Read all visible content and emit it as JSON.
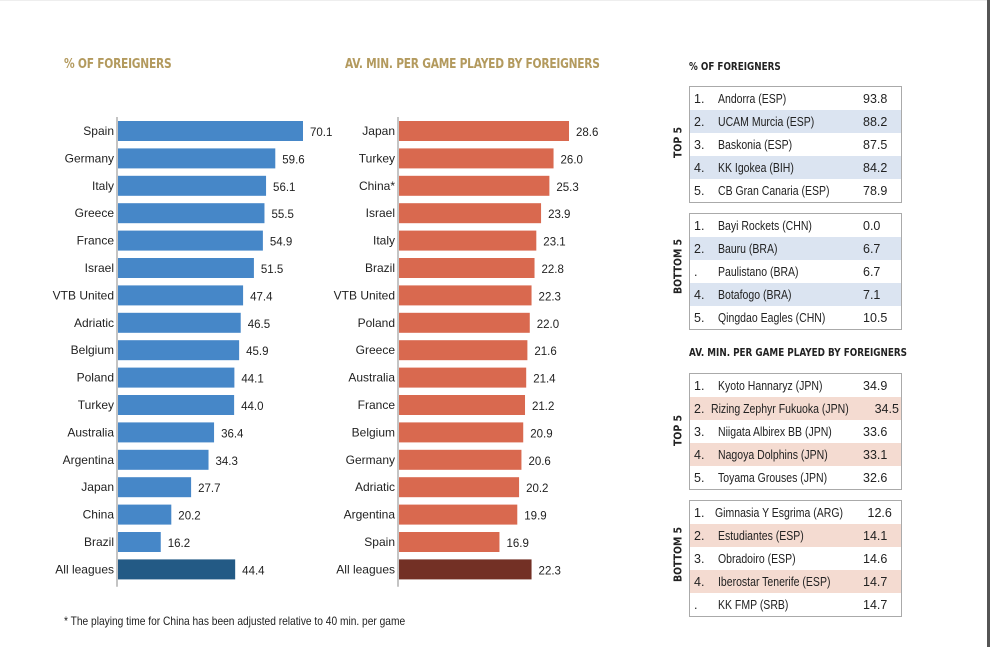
{
  "chart_data": [
    {
      "type": "bar",
      "orientation": "horizontal",
      "title": "% OF FOREIGNERS",
      "xlabel": "",
      "ylabel": "",
      "xlim": [
        0,
        80
      ],
      "grid": false,
      "bar_color": "#4687c8",
      "highlight_color": "#235a85",
      "categories": [
        "Spain",
        "Germany",
        "Italy",
        "Greece",
        "France",
        "Israel",
        "VTB United",
        "Adriatic",
        "Belgium",
        "Poland",
        "Turkey",
        "Australia",
        "Argentina",
        "Japan",
        "China",
        "Brazil",
        "All leagues"
      ],
      "values": [
        70.1,
        59.6,
        56.1,
        55.5,
        54.9,
        51.5,
        47.4,
        46.5,
        45.9,
        44.1,
        44.0,
        36.4,
        34.3,
        27.7,
        20.2,
        16.2,
        44.4
      ],
      "labels": [
        "70.1",
        "59.6",
        "56.1",
        "55.5",
        "54.9",
        "51.5",
        "47.4",
        "46.5",
        "45.9",
        "44.1",
        "44.0",
        "36.4",
        "34.3",
        "27.7",
        "20.2",
        "16.2",
        "44.4"
      ]
    },
    {
      "type": "bar",
      "orientation": "horizontal",
      "title": "AV. MIN. PER GAME PLAYED BY FOREIGNERS",
      "xlabel": "",
      "ylabel": "",
      "xlim": [
        0,
        33
      ],
      "grid": false,
      "bar_color": "#d9694f",
      "highlight_color": "#733025",
      "categories": [
        "Japan",
        "Turkey",
        "China*",
        "Israel",
        "Italy",
        "Brazil",
        "VTB United",
        "Poland",
        "Greece",
        "Australia",
        "France",
        "Belgium",
        "Germany",
        "Adriatic",
        "Argentina",
        "Spain",
        "All leagues"
      ],
      "values": [
        28.6,
        26.0,
        25.3,
        23.9,
        23.1,
        22.8,
        22.3,
        22.0,
        21.6,
        21.4,
        21.2,
        20.9,
        20.6,
        20.2,
        19.9,
        16.9,
        22.3
      ],
      "labels": [
        "28.6",
        "26.0",
        "25.3",
        "23.9",
        "23.1",
        "22.8",
        "22.3",
        "22.0",
        "21.6",
        "21.4",
        "21.2",
        "20.9",
        "20.6",
        "20.2",
        "19.9",
        "16.9",
        "22.3"
      ]
    }
  ],
  "footnote": "* The playing time for China has been adjusted relative to 40 min. per game",
  "tables": {
    "foreigners": {
      "title": "% OF FOREIGNERS",
      "top_label": "TOP 5",
      "bottom_label": "BOTTOM 5",
      "top": [
        {
          "rank": "1.",
          "team": "Andorra (ESP)",
          "value": "93.8"
        },
        {
          "rank": "2.",
          "team": "UCAM Murcia (ESP)",
          "value": "88.2"
        },
        {
          "rank": "3.",
          "team": "Baskonia (ESP)",
          "value": "87.5"
        },
        {
          "rank": "4.",
          "team": "KK Igokea (BIH)",
          "value": "84.2"
        },
        {
          "rank": "5.",
          "team": "CB Gran Canaria (ESP)",
          "value": "78.9"
        }
      ],
      "bottom": [
        {
          "rank": "1.",
          "team": "Bayi Rockets (CHN)",
          "value": "0.0"
        },
        {
          "rank": "2.",
          "team": "Bauru (BRA)",
          "value": "6.7"
        },
        {
          "rank": ".",
          "team": "Paulistano (BRA)",
          "value": "6.7"
        },
        {
          "rank": "4.",
          "team": "Botafogo (BRA)",
          "value": "7.1"
        },
        {
          "rank": "5.",
          "team": "Qingdao Eagles (CHN)",
          "value": "10.5"
        }
      ]
    },
    "minutes": {
      "title": "AV. MIN. PER GAME PLAYED BY FOREIGNERS",
      "top_label": "TOP 5",
      "bottom_label": "BOTTOM 5",
      "top": [
        {
          "rank": "1.",
          "team": "Kyoto Hannaryz (JPN)",
          "value": "34.9"
        },
        {
          "rank": "2.",
          "team": "Rizing Zephyr Fukuoka (JPN)",
          "value": "34.5"
        },
        {
          "rank": "3.",
          "team": "Niigata Albirex BB (JPN)",
          "value": "33.6"
        },
        {
          "rank": "4.",
          "team": "Nagoya Dolphins (JPN)",
          "value": "33.1"
        },
        {
          "rank": "5.",
          "team": "Toyama Grouses (JPN)",
          "value": "32.6"
        }
      ],
      "bottom": [
        {
          "rank": "1.",
          "team": "Gimnasia Y Esgrima (ARG)",
          "value": "12.6"
        },
        {
          "rank": "2.",
          "team": "Estudiantes (ESP)",
          "value": "14.1"
        },
        {
          "rank": "3.",
          "team": "Obradoiro (ESP)",
          "value": "14.6"
        },
        {
          "rank": "4.",
          "team": "Iberostar Tenerife (ESP)",
          "value": "14.7"
        },
        {
          "rank": ".",
          "team": "KK FMP (SRB)",
          "value": "14.7"
        }
      ]
    }
  }
}
